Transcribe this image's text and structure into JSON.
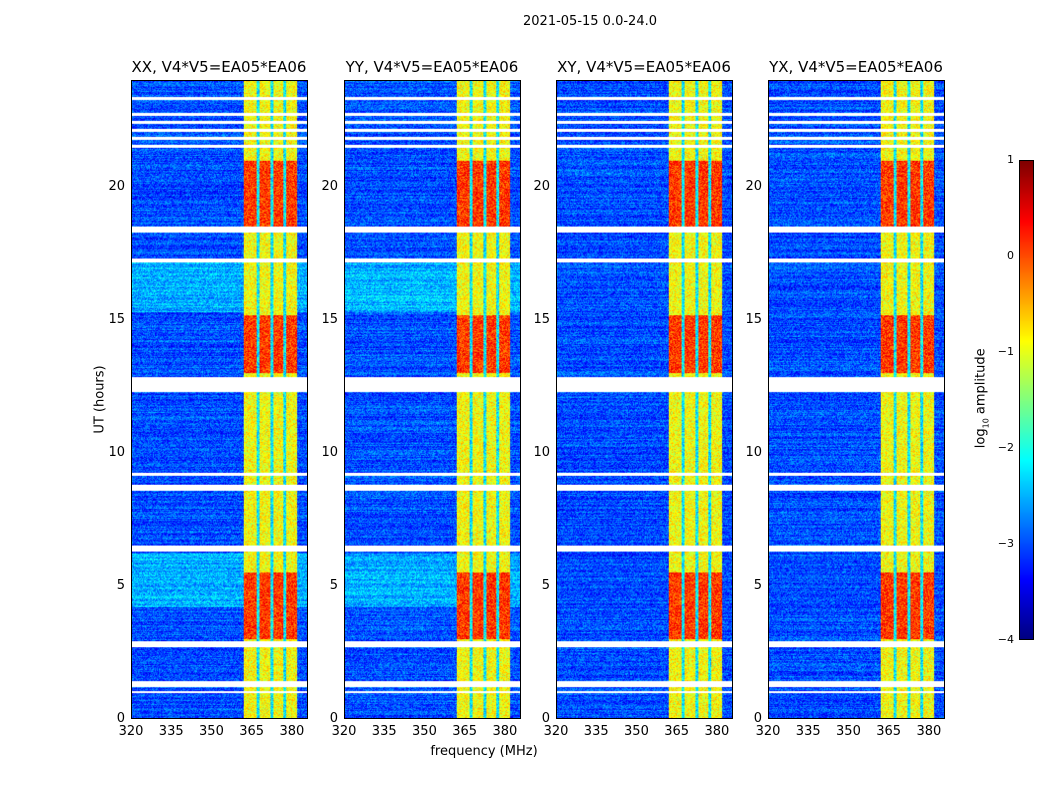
{
  "chart_data": {
    "type": "heatmap",
    "suptitle": "2021-05-15 0.0-24.0",
    "panels": [
      {
        "title": "XX, V4*V5=EA05*EA06"
      },
      {
        "title": "YY, V4*V5=EA05*EA06"
      },
      {
        "title": "XY, V4*V5=EA05*EA06"
      },
      {
        "title": "YX, V4*V5=EA05*EA06"
      }
    ],
    "xlabel": "frequency (MHz)",
    "ylabel": "UT (hours)",
    "xlim": [
      320,
      386
    ],
    "ylim": [
      0,
      24
    ],
    "xticks": [
      "320",
      "335",
      "350",
      "365",
      "380"
    ],
    "xtick_values": [
      320,
      335,
      350,
      365,
      380
    ],
    "yticks": [
      "0",
      "5",
      "10",
      "15",
      "20"
    ],
    "ytick_values": [
      0,
      5,
      10,
      15,
      20
    ],
    "colorbar": {
      "label_prefix": "log",
      "label_sub": "10",
      "label_suffix": " amplitude",
      "range": [
        -4,
        1
      ],
      "ticks": [
        "1",
        "0",
        "−1",
        "−2",
        "−3",
        "−4"
      ],
      "tick_values": [
        1,
        0,
        -1,
        -2,
        -3,
        -4
      ],
      "colormap": "jet"
    },
    "rfi_band_mhz": [
      362,
      382
    ],
    "rfi_gaps_mhz": [
      367.5,
      372.5,
      377.5
    ],
    "strong_periods_hours": [
      [
        3,
        5.5
      ],
      [
        13,
        15.2
      ],
      [
        18.5,
        21
      ]
    ],
    "flagged_hours": [
      [
        0.95,
        1.05
      ],
      [
        1.2,
        1.4
      ],
      [
        2.7,
        2.9
      ],
      [
        6.3,
        6.5
      ],
      [
        8.6,
        8.8
      ],
      [
        9.15,
        9.25
      ],
      [
        12.3,
        12.85
      ],
      [
        17.2,
        17.35
      ],
      [
        18.3,
        18.55
      ],
      [
        21.5,
        21.6
      ],
      [
        21.8,
        21.9
      ],
      [
        22.1,
        22.2
      ],
      [
        22.4,
        22.5
      ],
      [
        22.7,
        22.8
      ],
      [
        23.3,
        23.4
      ]
    ],
    "background_level": -3
  }
}
